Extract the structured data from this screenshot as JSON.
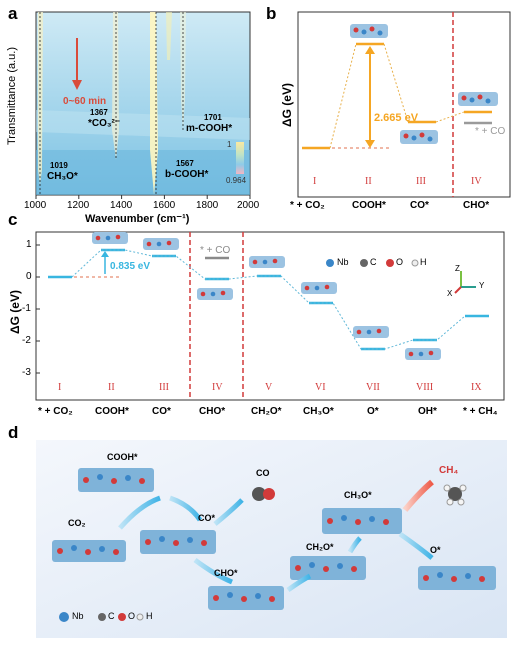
{
  "panels": {
    "a": {
      "letter": "a",
      "ylabel": "Transmittance (a.u.)",
      "xlabel": "Wavenumber (cm⁻¹)",
      "xticks": [
        "1000",
        "1200",
        "1400",
        "1600",
        "1800",
        "2000"
      ],
      "time_label": "0~60 min",
      "scale_max": "1",
      "scale_min": "0.964",
      "peaks": [
        {
          "num": "1019",
          "species": "CH₃O*",
          "x": 1019
        },
        {
          "num": "1367",
          "species": "*CO₃²⁻",
          "x": 1367
        },
        {
          "num": "1567",
          "species": "b-COOH*",
          "x": 1567
        },
        {
          "num": "1701",
          "species": "m-COOH*",
          "x": 1701
        }
      ]
    },
    "b": {
      "letter": "b",
      "ylabel": "ΔG (eV)",
      "energy_label": "2.665 eV",
      "co_label": "* + CO",
      "roman": [
        "I",
        "II",
        "III",
        "IV"
      ],
      "xcats": [
        "* + CO₂",
        "COOH*",
        "CO*",
        "CHO*"
      ]
    },
    "c": {
      "letter": "c",
      "ylabel": "ΔG (eV)",
      "yticks": [
        "1",
        "0",
        "-1",
        "-2",
        "-3"
      ],
      "energy_label": "0.835 eV",
      "co_label": "* + CO",
      "roman": [
        "I",
        "II",
        "III",
        "IV",
        "V",
        "VI",
        "VII",
        "VIII",
        "IX"
      ],
      "xcats": [
        "* + CO₂",
        "COOH*",
        "CO*",
        "CHO*",
        "CH₂O*",
        "CH₃O*",
        "O*",
        "OH*",
        "* + CH₄"
      ],
      "legend": [
        {
          "label": "Nb",
          "color": "#3a86c8"
        },
        {
          "label": "C",
          "color": "#666666"
        },
        {
          "label": "O",
          "color": "#d23a3a"
        },
        {
          "label": "H",
          "color": "#eeeeee"
        }
      ],
      "axes_labels": {
        "z": "Z",
        "x": "X",
        "y": "Y"
      }
    },
    "d": {
      "letter": "d",
      "species": [
        "COOH*",
        "CO₂",
        "CO*",
        "CO",
        "CHO*",
        "CH₂O*",
        "CH₃O*",
        "CH₄",
        "O*"
      ],
      "legend": [
        {
          "label": "Nb",
          "color": "#3a86c8"
        },
        {
          "label": "C",
          "color": "#666666"
        },
        {
          "label": "O",
          "color": "#d23a3a"
        },
        {
          "label": "H",
          "color": "#eeeeee"
        }
      ]
    }
  },
  "chart_data": [
    {
      "type": "line",
      "title": "",
      "xlabel": "",
      "ylabel": "ΔG (eV)",
      "categories": [
        "* + CO₂",
        "COOH*",
        "CO*",
        "CHO*"
      ],
      "values": [
        0,
        2.665,
        0.7,
        1.0
      ],
      "side_values": {
        "* + CO": 0.55
      }
    },
    {
      "type": "line",
      "title": "",
      "xlabel": "",
      "ylabel": "ΔG (eV)",
      "ylim": [
        -3.5,
        1.5
      ],
      "categories": [
        "* + CO₂",
        "COOH*",
        "CO*",
        "CHO*",
        "CH₂O*",
        "CH₃O*",
        "O*",
        "OH*",
        "* + CH₄"
      ],
      "values": [
        0,
        0.835,
        0.65,
        -0.05,
        0.02,
        -0.8,
        -2.2,
        -1.95,
        -1.2
      ],
      "side_values": {
        "* + CO": 0.6
      }
    }
  ]
}
